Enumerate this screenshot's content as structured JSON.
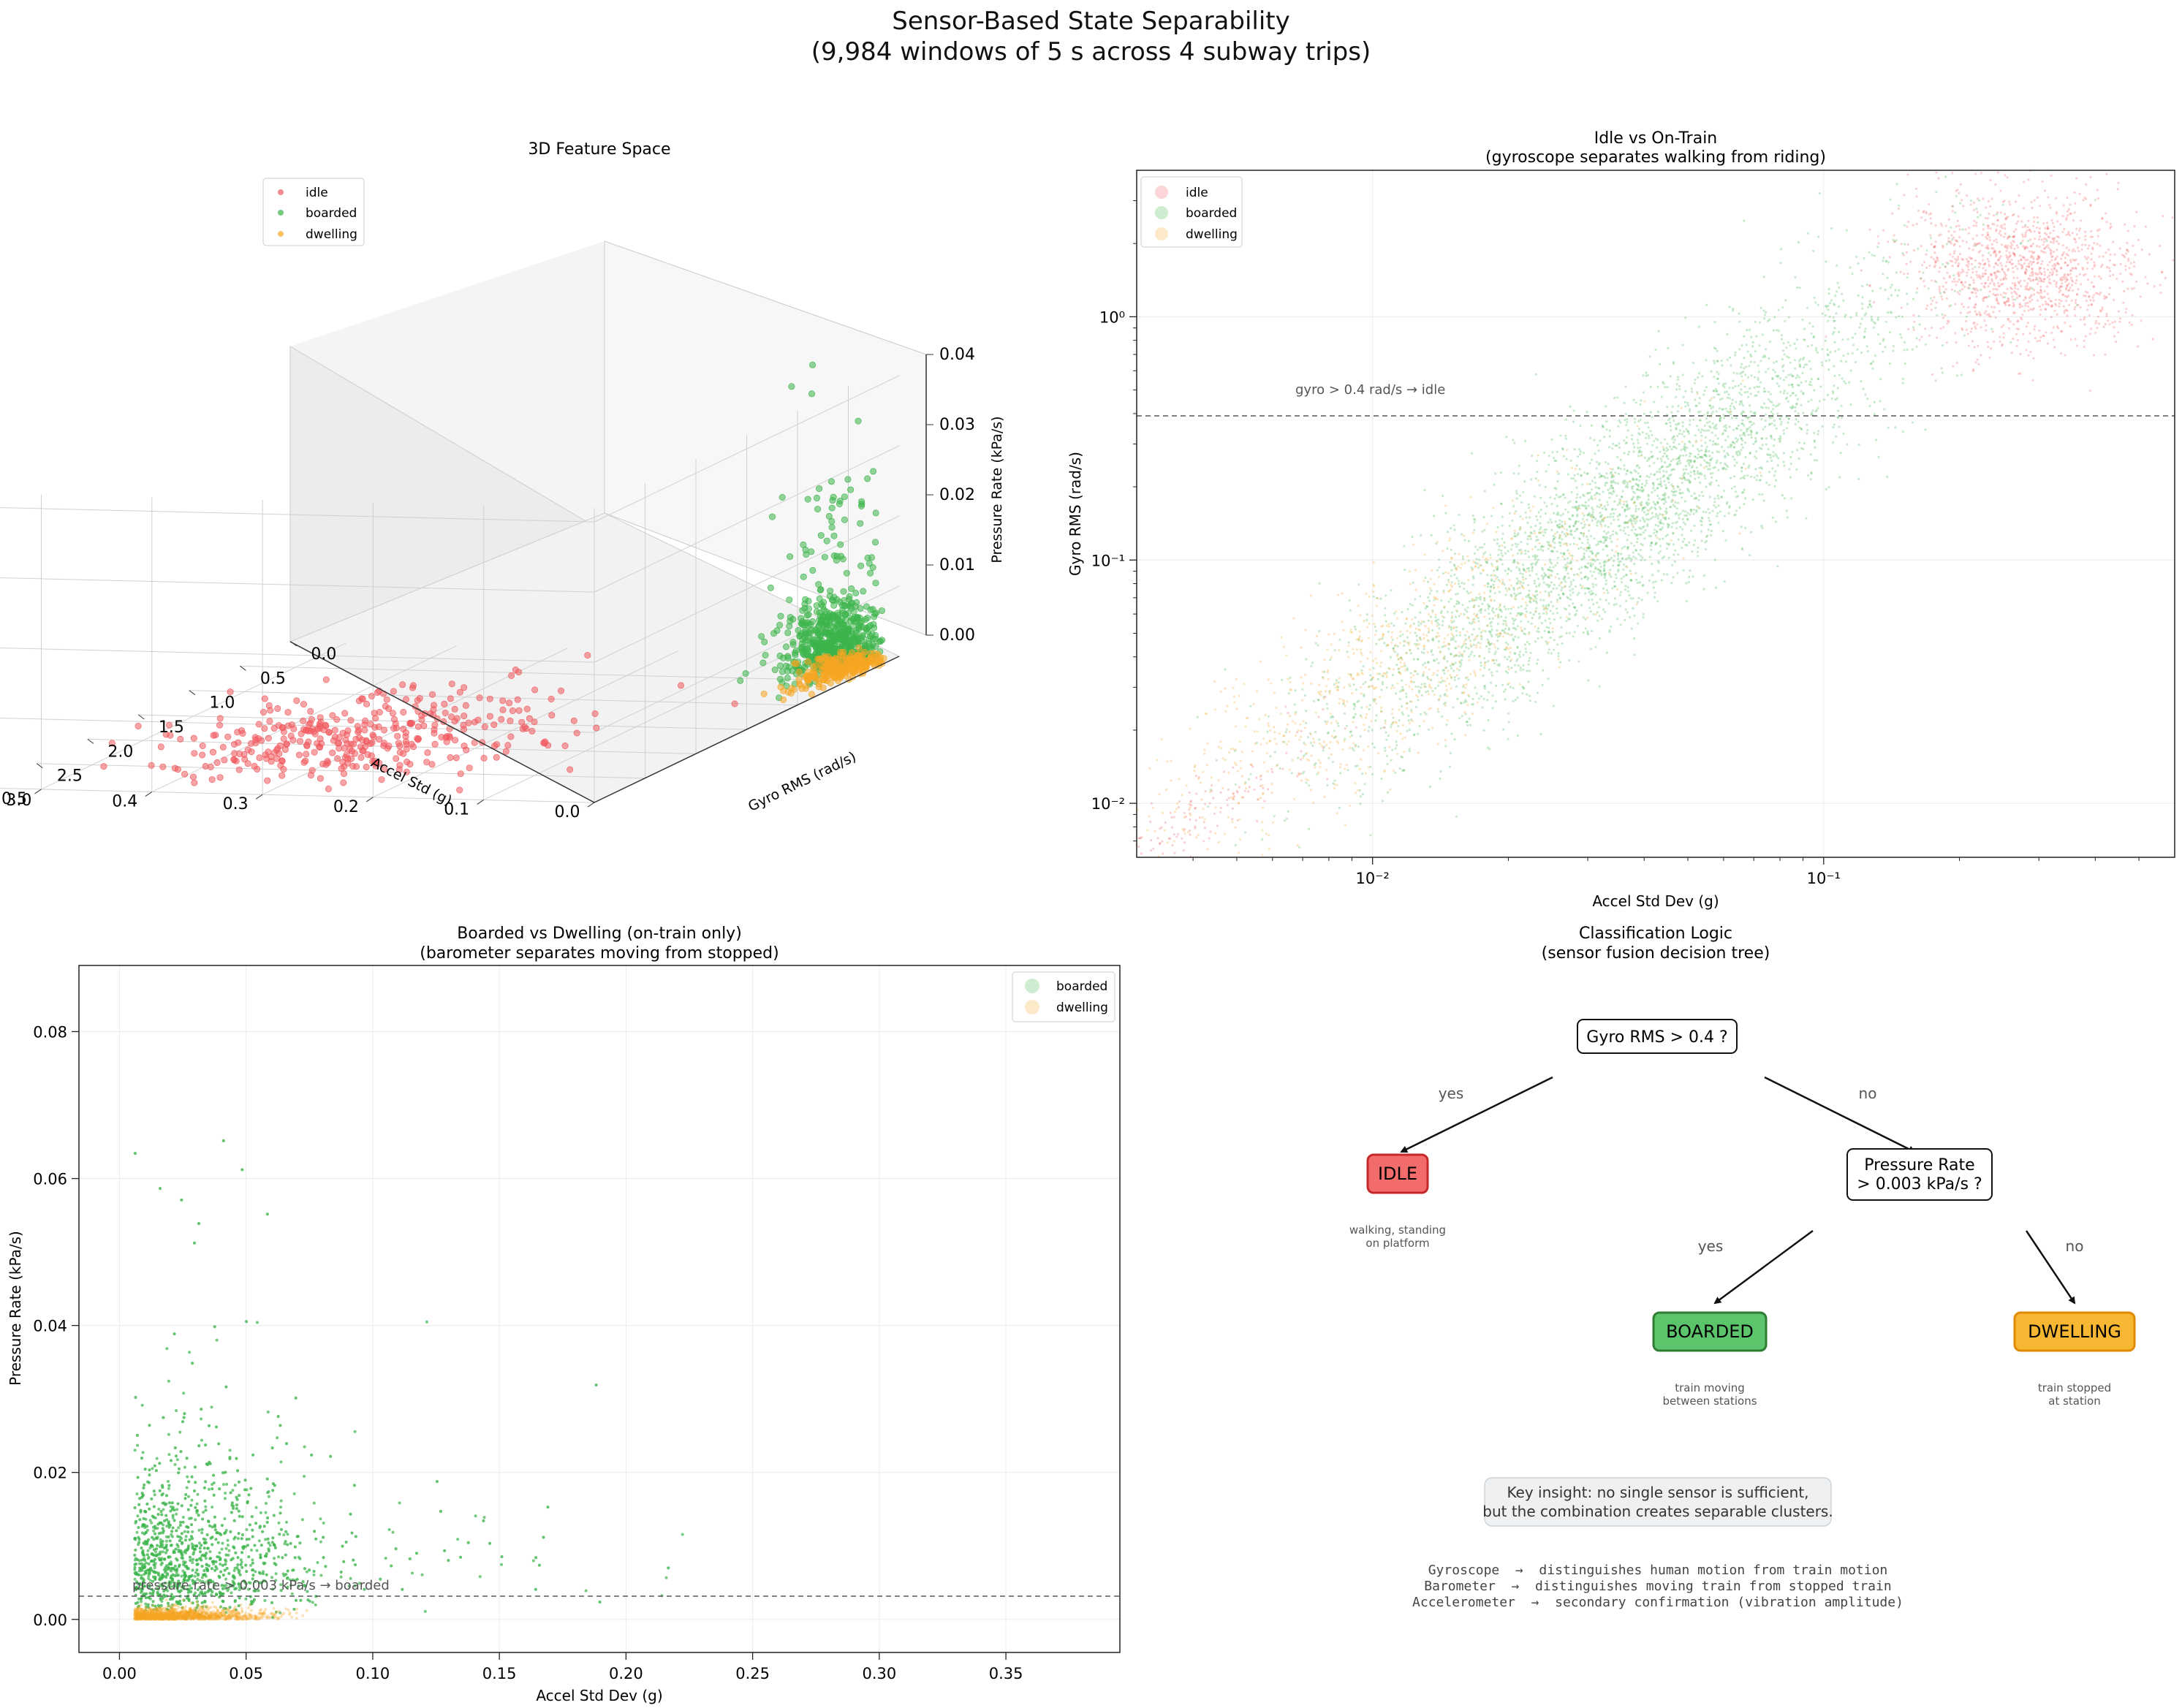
{
  "figure": {
    "title_line1": "Sensor-Based State Separability",
    "title_line2": "(9,984 windows of 5 s across 4 subway trips)"
  },
  "colors": {
    "idle": "#f0595f",
    "boarded": "#3cb44b",
    "dwelling": "#f5a623",
    "threshold_line": "#555555"
  },
  "chart_data": [
    {
      "id": "panel-3d",
      "type": "scatter",
      "projection": "3d",
      "title": "3D Feature Space",
      "xlabel": "Accel Std (g)",
      "ylabel": "Gyro RMS (rad/s)",
      "zlabel": "Pressure Rate (kPa/s)",
      "xlim": [
        0.0,
        0.55
      ],
      "ylim": [
        0.0,
        3.0
      ],
      "zlim": [
        0.0,
        0.04
      ],
      "x_ticks": [
        "0.0",
        "0.1",
        "0.2",
        "0.3",
        "0.4",
        "0.5"
      ],
      "y_ticks": [
        "0.0",
        "0.5",
        "1.0",
        "1.5",
        "2.0",
        "2.5",
        "3.0"
      ],
      "z_ticks": [
        "0.00",
        "0.01",
        "0.02",
        "0.03",
        "0.04"
      ],
      "legend": [
        "idle",
        "boarded",
        "dwelling"
      ],
      "legend_loc": "upper-left",
      "series": [
        {
          "name": "idle",
          "approx_centre": {
            "accel": 0.3,
            "gyro": 2.0,
            "pressure": 0.001
          }
        },
        {
          "name": "boarded",
          "approx_centre": {
            "accel": 0.03,
            "gyro": 0.2,
            "pressure": 0.006
          }
        },
        {
          "name": "dwelling",
          "approx_centre": {
            "accel": 0.02,
            "gyro": 0.15,
            "pressure": 0.0005
          }
        }
      ]
    },
    {
      "id": "panel-idle-vs-train",
      "type": "scatter",
      "title_line1": "Idle vs On-Train",
      "title_line2": "(gyroscope separates walking from riding)",
      "xlabel": "Accel Std Dev (g)",
      "ylabel": "Gyro RMS (rad/s)",
      "xscale": "log",
      "yscale": "log",
      "xlim": [
        0.003,
        0.6
      ],
      "ylim": [
        0.006,
        4.0
      ],
      "x_ticks": [
        "10⁻²",
        "10⁻¹"
      ],
      "y_ticks": [
        "10⁻²",
        "10⁻¹",
        "10⁰"
      ],
      "threshold": {
        "axis": "y",
        "value": 0.4,
        "label": "gyro > 0.4 rad/s → idle"
      },
      "legend": [
        "idle",
        "boarded",
        "dwelling"
      ],
      "legend_loc": "upper-left",
      "series": [
        {
          "name": "idle",
          "clusters": [
            {
              "x": 0.28,
              "y": 1.6
            },
            {
              "x": 0.004,
              "y": 0.009
            }
          ]
        },
        {
          "name": "boarded",
          "clusters": [
            {
              "x": 0.035,
              "y": 0.15
            }
          ]
        },
        {
          "name": "dwelling",
          "clusters": [
            {
              "x": 0.008,
              "y": 0.03
            }
          ]
        }
      ]
    },
    {
      "id": "panel-boarded-vs-dwelling",
      "type": "scatter",
      "title_line1": "Boarded vs Dwelling (on-train only)",
      "title_line2": "(barometer separates moving from stopped)",
      "xlabel": "Accel Std Dev (g)",
      "ylabel": "Pressure Rate (kPa/s)",
      "xlim": [
        -0.016,
        0.395
      ],
      "ylim": [
        -0.0045,
        0.089
      ],
      "x_ticks": [
        0.0,
        0.05,
        0.1,
        0.15,
        0.2,
        0.25,
        0.3,
        0.35
      ],
      "x_tick_labels": [
        "0.00",
        "0.05",
        "0.10",
        "0.15",
        "0.20",
        "0.25",
        "0.30",
        "0.35"
      ],
      "y_ticks": [
        0.0,
        0.02,
        0.04,
        0.06,
        0.08
      ],
      "y_tick_labels": [
        "0.00",
        "0.02",
        "0.04",
        "0.06",
        "0.08"
      ],
      "threshold": {
        "axis": "y",
        "value": 0.003,
        "label": "pressure rate > 0.003 kPa/s → boarded"
      },
      "legend": [
        "boarded",
        "dwelling"
      ],
      "legend_loc": "upper-right",
      "series": [
        {
          "name": "boarded",
          "approx_centre": {
            "x": 0.03,
            "y": 0.006
          }
        },
        {
          "name": "dwelling",
          "approx_centre": {
            "x": 0.02,
            "y": 0.0005
          }
        }
      ]
    }
  ],
  "tree": {
    "title_line1": "Classification Logic",
    "title_line2": "(sensor fusion decision tree)",
    "root": "Gyro RMS > 0.4 ?",
    "yes": "yes",
    "no": "no",
    "pressure_q_line1": "Pressure Rate",
    "pressure_q_line2": "> 0.003 kPa/s ?",
    "idle_label": "IDLE",
    "idle_desc_line1": "walking, standing",
    "idle_desc_line2": "on platform",
    "boarded_label": "BOARDED",
    "boarded_desc_line1": "train moving",
    "boarded_desc_line2": "between stations",
    "dwelling_label": "DWELLING",
    "dwelling_desc_line1": "train stopped",
    "dwelling_desc_line2": "at station",
    "insight_line1": "Key insight: no single sensor is sufficient,",
    "insight_line2": "but the combination creates separable clusters.",
    "notes": [
      "Gyroscope  →  distinguishes human motion from train motion",
      "Barometer  →  distinguishes moving train from stopped train",
      "Accelerometer  →  secondary confirmation (vibration amplitude)"
    ]
  }
}
